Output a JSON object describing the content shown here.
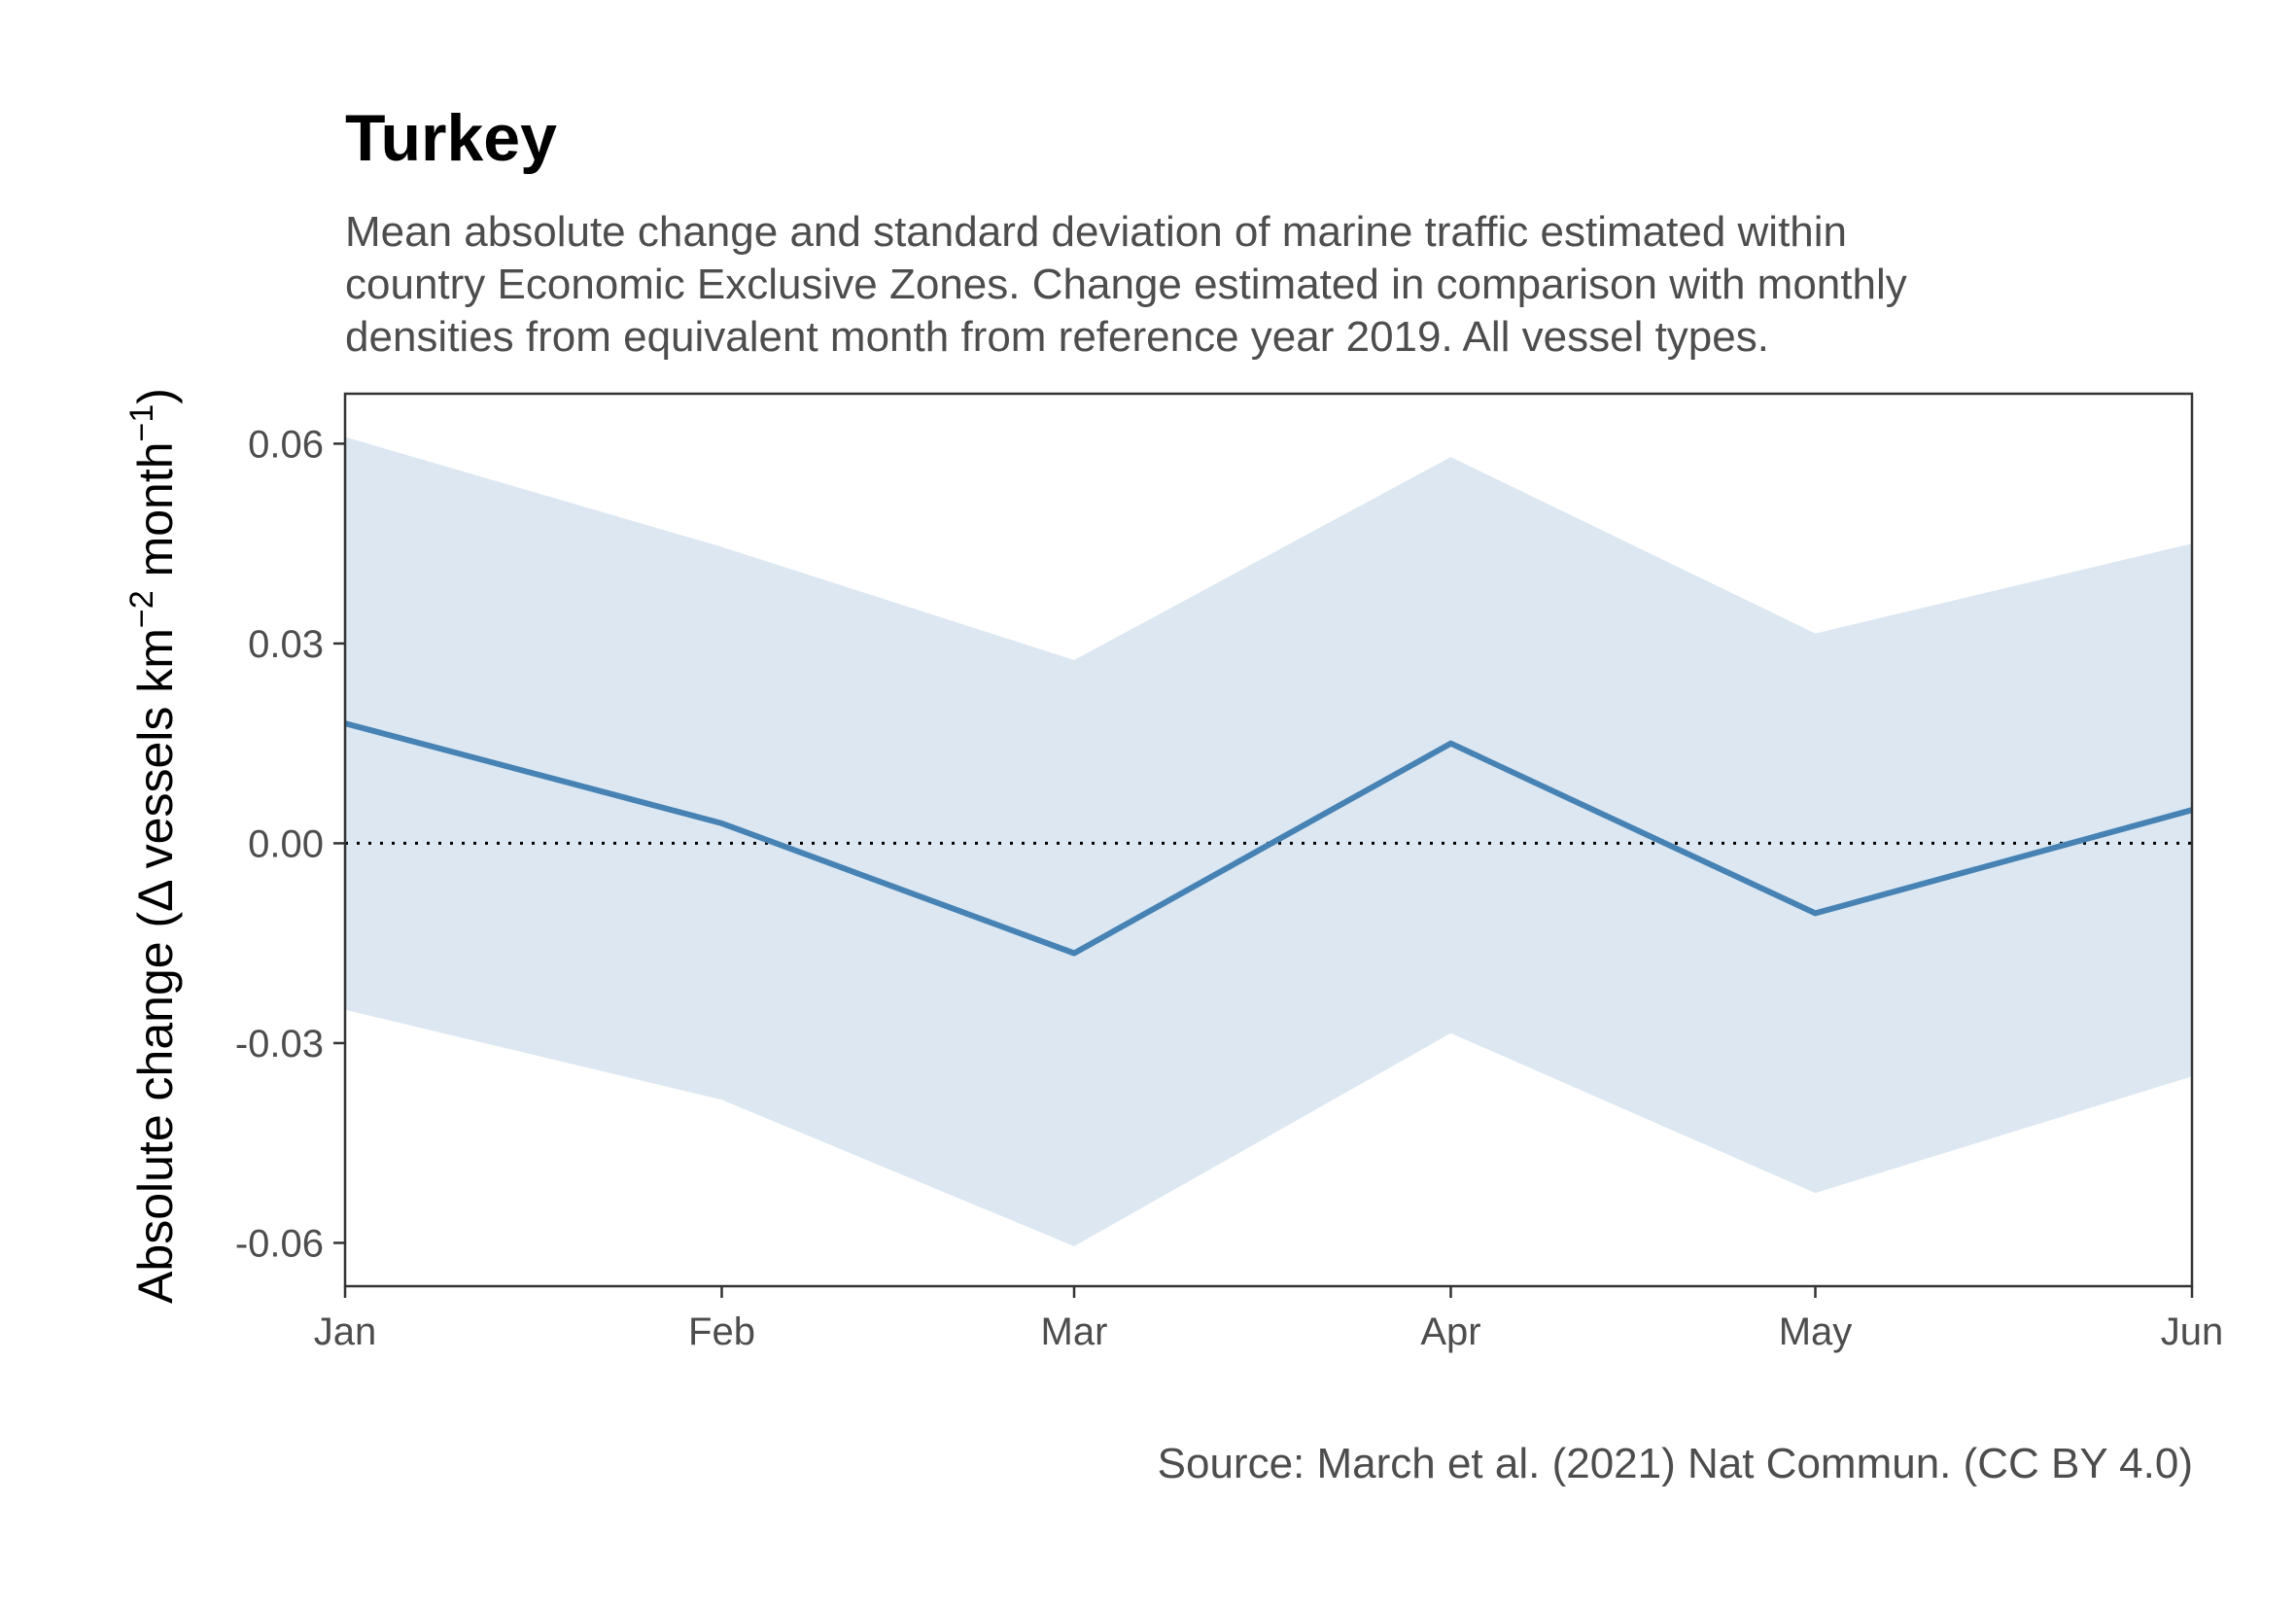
{
  "chart_data": {
    "type": "line",
    "title": "Turkey",
    "subtitle": [
      "Mean absolute change and standard deviation of marine traffic estimated within",
      "country Economic Exclusive Zones. Change estimated in comparison with monthly",
      "densities from equivalent month from reference year 2019. All vessel types."
    ],
    "caption": "Source: March et al. (2021) Nat Commun. (CC BY 4.0)",
    "ylabel": {
      "main": "Absolute change (",
      "delta": "Δ",
      "unit": " vessels km",
      "exp1": "−2",
      "month": " month",
      "exp2": "−1",
      "close": ")"
    },
    "xlabel": "",
    "categories": [
      "Jan",
      "Feb",
      "Mar",
      "Apr",
      "May",
      "Jun"
    ],
    "x_days": [
      1,
      32,
      61,
      92,
      122,
      153
    ],
    "series": [
      {
        "mean": [
          0.018,
          0.003,
          -0.0165,
          0.015,
          -0.0105,
          0.005
        ],
        "lower": [
          -0.025,
          -0.0385,
          -0.0605,
          -0.0285,
          -0.0525,
          -0.035
        ],
        "upper": [
          0.061,
          0.0445,
          0.0275,
          0.058,
          0.0315,
          0.045
        ]
      }
    ],
    "reference_line": 0,
    "yticks": [
      -0.06,
      -0.03,
      0.0,
      0.03,
      0.06
    ],
    "ytick_labels": [
      "-0.06",
      "-0.03",
      "0.00",
      "0.03",
      "0.06"
    ],
    "ylim": [
      -0.0665,
      0.0675
    ],
    "xlim": [
      1,
      153
    ],
    "colors": {
      "line": "#4682b4",
      "ribbon": "#dce7f1",
      "reference": "#000000",
      "panel_border": "#333333"
    },
    "grid": false,
    "legend": "none"
  }
}
